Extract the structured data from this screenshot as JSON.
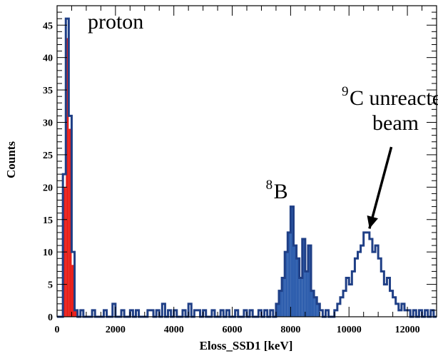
{
  "chart_data": {
    "type": "histogram",
    "xlabel": "Eloss_SSD1 [keV]",
    "ylabel": "Counts",
    "xlim": [
      0,
      13000
    ],
    "ylim": [
      0,
      48
    ],
    "bin_width": 100,
    "x_ticks": [
      0,
      2000,
      4000,
      6000,
      8000,
      10000,
      12000
    ],
    "y_ticks": [
      0,
      5,
      10,
      15,
      20,
      25,
      30,
      35,
      40,
      45
    ],
    "grid": false,
    "colors": {
      "outline": "#1f3f86",
      "blue_fill": "#2f5fae",
      "red_fill": "#e8201b"
    },
    "series": [
      {
        "name": "blue",
        "fill_ranges": [
          [
            7500,
            9000
          ]
        ],
        "bins": [
          [
            0,
            0
          ],
          [
            100,
            0
          ],
          [
            200,
            22
          ],
          [
            300,
            46
          ],
          [
            400,
            31
          ],
          [
            500,
            10
          ],
          [
            600,
            1
          ],
          [
            700,
            0
          ],
          [
            800,
            1
          ],
          [
            900,
            0
          ],
          [
            1000,
            0
          ],
          [
            1100,
            0
          ],
          [
            1200,
            1
          ],
          [
            1300,
            0
          ],
          [
            1400,
            0
          ],
          [
            1500,
            0
          ],
          [
            1600,
            1
          ],
          [
            1700,
            0
          ],
          [
            1800,
            0
          ],
          [
            1900,
            2
          ],
          [
            2000,
            0
          ],
          [
            2100,
            0
          ],
          [
            2200,
            1
          ],
          [
            2300,
            0
          ],
          [
            2400,
            0
          ],
          [
            2500,
            1
          ],
          [
            2600,
            0
          ],
          [
            2700,
            1
          ],
          [
            2800,
            0
          ],
          [
            2900,
            0
          ],
          [
            3000,
            0
          ],
          [
            3100,
            1
          ],
          [
            3200,
            1
          ],
          [
            3300,
            0
          ],
          [
            3400,
            1
          ],
          [
            3500,
            0
          ],
          [
            3600,
            2
          ],
          [
            3700,
            0
          ],
          [
            3800,
            1
          ],
          [
            3900,
            0
          ],
          [
            4000,
            1
          ],
          [
            4100,
            0
          ],
          [
            4200,
            0
          ],
          [
            4300,
            1
          ],
          [
            4400,
            0
          ],
          [
            4500,
            2
          ],
          [
            4600,
            0
          ],
          [
            4700,
            1
          ],
          [
            4800,
            1
          ],
          [
            4900,
            0
          ],
          [
            5000,
            1
          ],
          [
            5100,
            0
          ],
          [
            5200,
            0
          ],
          [
            5300,
            1
          ],
          [
            5400,
            0
          ],
          [
            5500,
            0
          ],
          [
            5600,
            1
          ],
          [
            5700,
            0
          ],
          [
            5800,
            1
          ],
          [
            5900,
            0
          ],
          [
            6000,
            0
          ],
          [
            6100,
            1
          ],
          [
            6200,
            0
          ],
          [
            6300,
            0
          ],
          [
            6400,
            1
          ],
          [
            6500,
            0
          ],
          [
            6600,
            1
          ],
          [
            6700,
            0
          ],
          [
            6800,
            0
          ],
          [
            6900,
            1
          ],
          [
            7000,
            0
          ],
          [
            7100,
            1
          ],
          [
            7200,
            0
          ],
          [
            7300,
            1
          ],
          [
            7400,
            0
          ],
          [
            7500,
            2
          ],
          [
            7600,
            4
          ],
          [
            7700,
            6
          ],
          [
            7800,
            10
          ],
          [
            7900,
            13
          ],
          [
            8000,
            17
          ],
          [
            8100,
            11
          ],
          [
            8200,
            9
          ],
          [
            8300,
            6
          ],
          [
            8400,
            12
          ],
          [
            8500,
            7
          ],
          [
            8600,
            11
          ],
          [
            8700,
            4
          ],
          [
            8800,
            3
          ],
          [
            8900,
            2
          ],
          [
            9000,
            1
          ],
          [
            9100,
            0
          ],
          [
            9200,
            1
          ],
          [
            9300,
            0
          ],
          [
            9400,
            0
          ],
          [
            9500,
            1
          ],
          [
            9600,
            2
          ],
          [
            9700,
            3
          ],
          [
            9800,
            4
          ],
          [
            9900,
            6
          ],
          [
            10000,
            5
          ],
          [
            10100,
            7
          ],
          [
            10200,
            9
          ],
          [
            10300,
            10
          ],
          [
            10400,
            11
          ],
          [
            10500,
            13
          ],
          [
            10600,
            13
          ],
          [
            10700,
            12
          ],
          [
            10800,
            10
          ],
          [
            10900,
            11
          ],
          [
            11000,
            9
          ],
          [
            11100,
            7
          ],
          [
            11200,
            5
          ],
          [
            11300,
            6
          ],
          [
            11400,
            4
          ],
          [
            11500,
            3
          ],
          [
            11600,
            2
          ],
          [
            11700,
            1
          ],
          [
            11800,
            2
          ],
          [
            11900,
            1
          ],
          [
            12000,
            1
          ],
          [
            12100,
            0
          ],
          [
            12200,
            1
          ],
          [
            12300,
            0
          ],
          [
            12400,
            1
          ],
          [
            12500,
            0
          ],
          [
            12600,
            1
          ],
          [
            12700,
            0
          ],
          [
            12800,
            1
          ],
          [
            12900,
            0
          ]
        ]
      },
      {
        "name": "red",
        "bins": [
          [
            200,
            20
          ],
          [
            300,
            43
          ],
          [
            400,
            29
          ],
          [
            500,
            8
          ],
          [
            600,
            1
          ]
        ]
      }
    ],
    "annotations": [
      {
        "id": "proton",
        "text": "proton",
        "at": [
          1050,
          44.5
        ]
      },
      {
        "id": "b8",
        "sup": "8",
        "text": "B",
        "at": [
          7150,
          18.3
        ]
      },
      {
        "id": "c9",
        "sup": "9",
        "text": "C unreacted",
        "text2": "beam",
        "at": [
          9750,
          32.7
        ],
        "arrow_from": [
          11450,
          26.2
        ],
        "arrow_to": [
          10700,
          13.6
        ]
      }
    ]
  }
}
